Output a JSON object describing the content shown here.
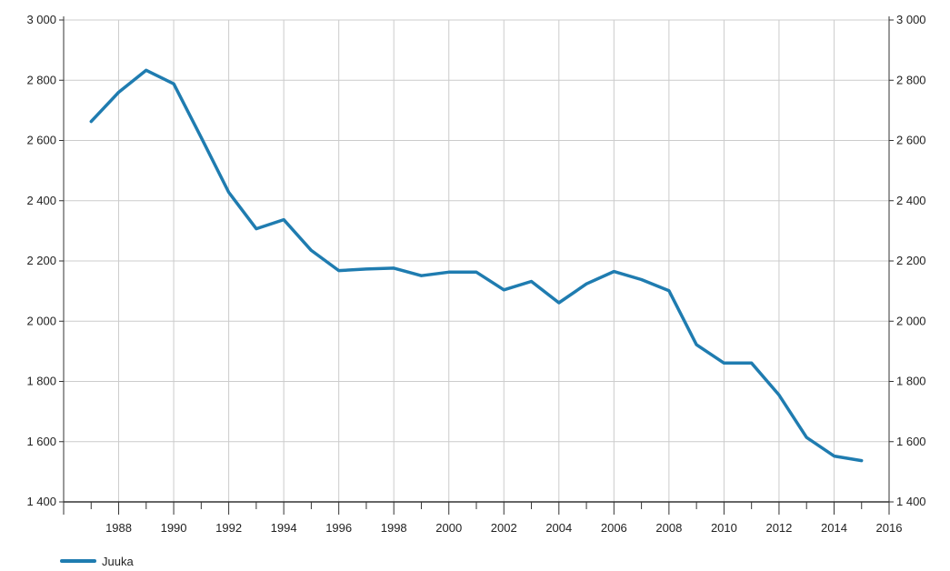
{
  "chart_data": {
    "type": "line",
    "title": "",
    "xlabel": "",
    "ylabel": "",
    "x": [
      1987,
      1988,
      1989,
      1990,
      1991,
      1992,
      1993,
      1994,
      1995,
      1996,
      1997,
      1998,
      1999,
      2000,
      2001,
      2002,
      2003,
      2004,
      2005,
      2006,
      2007,
      2008,
      2009,
      2010,
      2011,
      2012,
      2013,
      2014,
      2015
    ],
    "series": [
      {
        "name": "Juuka",
        "color": "#1f7cb0",
        "values": [
          2663,
          2760,
          2833,
          2788,
          2610,
          2428,
          2307,
          2337,
          2235,
          2168,
          2173,
          2176,
          2151,
          2163,
          2163,
          2104,
          2132,
          2061,
          2124,
          2165,
          2138,
          2101,
          1922,
          1861,
          1861,
          1755,
          1614,
          1552,
          1537
        ]
      }
    ],
    "xlim": [
      1986,
      2016
    ],
    "ylim": [
      1400,
      3000
    ],
    "x_ticks": [
      1988,
      1990,
      1992,
      1994,
      1996,
      1998,
      2000,
      2002,
      2004,
      2006,
      2008,
      2010,
      2012,
      2014,
      2016
    ],
    "x_tick_labels": [
      "1988",
      "1990",
      "1992",
      "1994",
      "1996",
      "1998",
      "2000",
      "2002",
      "2004",
      "2006",
      "2008",
      "2010",
      "2012",
      "2014",
      "2016"
    ],
    "y_ticks": [
      1400,
      1600,
      1800,
      2000,
      2200,
      2400,
      2600,
      2800,
      3000
    ],
    "y_tick_labels": [
      "1 400",
      "1 600",
      "1 800",
      "2 000",
      "2 200",
      "2 400",
      "2 600",
      "2 800",
      "3 000"
    ],
    "grid": true,
    "dual_y_axis": true,
    "legend_position": "bottom-left",
    "colors": {
      "axis": "#333333",
      "grid": "#cccccc"
    }
  }
}
